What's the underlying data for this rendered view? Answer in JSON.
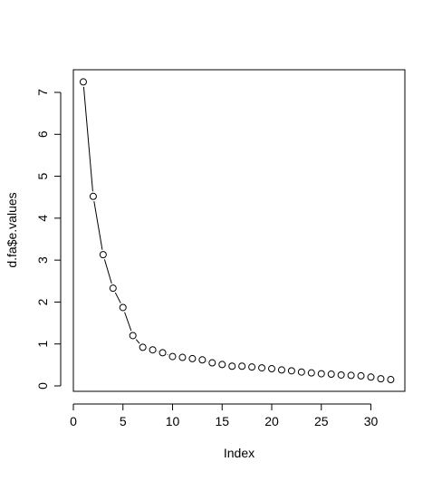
{
  "chart_data": {
    "type": "line",
    "xlabel": "Index",
    "ylabel": "d.fa$e.values",
    "xlim": [
      0,
      33
    ],
    "ylim": [
      -0.2,
      7.5
    ],
    "x_ticks": [
      0,
      5,
      10,
      15,
      20,
      25,
      30
    ],
    "y_ticks": [
      0,
      1,
      2,
      3,
      4,
      5,
      6,
      7
    ],
    "grid": false,
    "series": [
      {
        "marker": "open-circle",
        "line": "solid",
        "color": "#000000",
        "x": [
          1,
          2,
          3,
          4,
          5,
          6,
          7,
          8,
          9,
          10,
          11,
          12,
          13,
          14,
          15,
          16,
          17,
          18,
          19,
          20,
          21,
          22,
          23,
          24,
          25,
          26,
          27,
          28,
          29,
          30,
          31,
          32
        ],
        "values": [
          7.25,
          4.52,
          3.13,
          2.33,
          1.87,
          1.2,
          0.92,
          0.86,
          0.79,
          0.7,
          0.68,
          0.65,
          0.62,
          0.55,
          0.51,
          0.47,
          0.47,
          0.45,
          0.43,
          0.41,
          0.38,
          0.36,
          0.33,
          0.31,
          0.29,
          0.28,
          0.26,
          0.25,
          0.24,
          0.21,
          0.17,
          0.15
        ]
      }
    ]
  }
}
